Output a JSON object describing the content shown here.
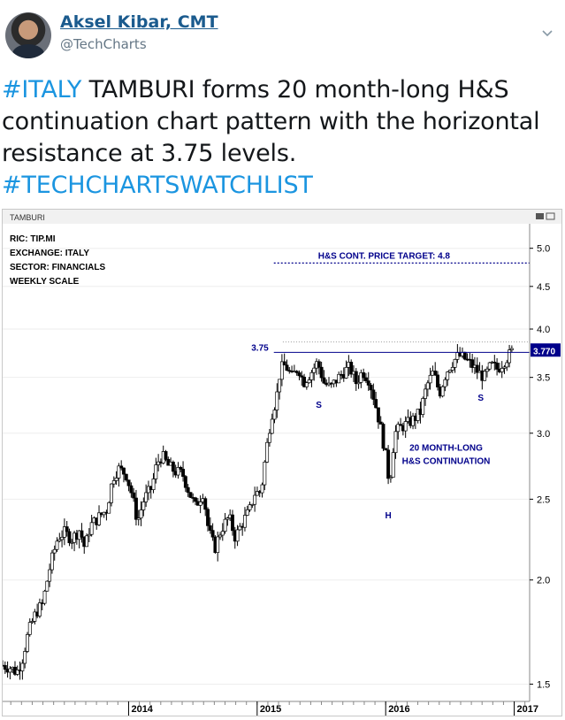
{
  "tweet": {
    "author_name": "Aksel Kibar, CMT",
    "author_handle": "@TechCharts",
    "text_tag1": "#ITALY",
    "text_body": " TAMBURI forms 20 month-long H&S continuation chart pattern with the horizontal resistance at 3.75 levels.",
    "text_tag2": "#TECHCHARTSWATCHLIST",
    "icons": {
      "avatar": "avatar-photo",
      "menu": "chevron-down-icon"
    }
  },
  "chart_data": {
    "type": "candlestick",
    "title": "TAMBURI",
    "info_lines": [
      "RIC: TIP.MI",
      "EXCHANGE: ITALY",
      "SECTOR: FINANCIALS",
      "WEEKLY SCALE"
    ],
    "scale": "log",
    "ylim": [
      1.43,
      5.35
    ],
    "y_ticks": [
      1.5,
      2.0,
      2.5,
      3.0,
      3.5,
      4.0,
      4.5,
      5.0
    ],
    "y_tick_labels": [
      "1.5",
      "2.0",
      "2.5",
      "3.0",
      "3.5",
      "4.0",
      "4.5",
      "5.0"
    ],
    "xlim": [
      2013.02,
      2017.12
    ],
    "x_ticks": [
      2014,
      2015,
      2016,
      2017
    ],
    "x_tick_labels": [
      "2014",
      "2015",
      "2016",
      "2017"
    ],
    "last_price_label": "3.770",
    "last_price": 3.77,
    "resistance": {
      "value": 3.75,
      "label": "3.75",
      "color": "#00008b"
    },
    "target": {
      "value": 4.8,
      "label": "H&S CONT. PRICE TARGET: 4.8",
      "color": "#00008b",
      "x_start": 2015.13
    },
    "dotted_reference": 3.86,
    "annotations": [
      {
        "text": "S",
        "x": 2015.48,
        "y": 3.22
      },
      {
        "text": "H",
        "x": 2016.02,
        "y": 2.37
      },
      {
        "text": "S",
        "x": 2016.74,
        "y": 3.28
      }
    ],
    "pattern_label": [
      "20 MONTH-LONG",
      "H&S CONTINUATION"
    ],
    "pattern_label_anchor": {
      "x": 2016.47,
      "y": 2.86
    },
    "price_path": [
      [
        2013.02,
        1.58
      ],
      [
        2013.08,
        1.57
      ],
      [
        2013.13,
        1.55
      ],
      [
        2013.17,
        1.6
      ],
      [
        2013.22,
        1.73
      ],
      [
        2013.28,
        1.83
      ],
      [
        2013.33,
        1.87
      ],
      [
        2013.39,
        2.08
      ],
      [
        2013.45,
        2.25
      ],
      [
        2013.5,
        2.28
      ],
      [
        2013.56,
        2.24
      ],
      [
        2013.62,
        2.3
      ],
      [
        2013.66,
        2.18
      ],
      [
        2013.7,
        2.32
      ],
      [
        2013.77,
        2.38
      ],
      [
        2013.83,
        2.43
      ],
      [
        2013.88,
        2.66
      ],
      [
        2013.92,
        2.72
      ],
      [
        2013.98,
        2.68
      ],
      [
        2014.02,
        2.55
      ],
      [
        2014.07,
        2.35
      ],
      [
        2014.12,
        2.5
      ],
      [
        2014.18,
        2.58
      ],
      [
        2014.22,
        2.76
      ],
      [
        2014.26,
        2.82
      ],
      [
        2014.31,
        2.74
      ],
      [
        2014.36,
        2.7
      ],
      [
        2014.42,
        2.68
      ],
      [
        2014.47,
        2.55
      ],
      [
        2014.52,
        2.45
      ],
      [
        2014.58,
        2.55
      ],
      [
        2014.62,
        2.3
      ],
      [
        2014.67,
        2.18
      ],
      [
        2014.72,
        2.3
      ],
      [
        2014.78,
        2.38
      ],
      [
        2014.83,
        2.25
      ],
      [
        2014.89,
        2.35
      ],
      [
        2014.94,
        2.42
      ],
      [
        2014.98,
        2.54
      ],
      [
        2015.03,
        2.55
      ],
      [
        2015.07,
        2.85
      ],
      [
        2015.11,
        3.15
      ],
      [
        2015.15,
        3.3
      ],
      [
        2015.18,
        3.58
      ],
      [
        2015.22,
        3.62
      ],
      [
        2015.27,
        3.5
      ],
      [
        2015.32,
        3.6
      ],
      [
        2015.36,
        3.45
      ],
      [
        2015.42,
        3.55
      ],
      [
        2015.47,
        3.65
      ],
      [
        2015.52,
        3.45
      ],
      [
        2015.57,
        3.4
      ],
      [
        2015.62,
        3.48
      ],
      [
        2015.67,
        3.55
      ],
      [
        2015.72,
        3.6
      ],
      [
        2015.77,
        3.45
      ],
      [
        2015.82,
        3.56
      ],
      [
        2015.87,
        3.48
      ],
      [
        2015.91,
        3.3
      ],
      [
        2015.96,
        3.05
      ],
      [
        2016.0,
        2.82
      ],
      [
        2016.03,
        2.6
      ],
      [
        2016.07,
        3.0
      ],
      [
        2016.12,
        3.05
      ],
      [
        2016.17,
        3.08
      ],
      [
        2016.22,
        3.12
      ],
      [
        2016.27,
        3.18
      ],
      [
        2016.32,
        3.42
      ],
      [
        2016.37,
        3.55
      ],
      [
        2016.42,
        3.35
      ],
      [
        2016.47,
        3.55
      ],
      [
        2016.52,
        3.65
      ],
      [
        2016.57,
        3.72
      ],
      [
        2016.62,
        3.68
      ],
      [
        2016.67,
        3.62
      ],
      [
        2016.72,
        3.55
      ],
      [
        2016.77,
        3.5
      ],
      [
        2016.82,
        3.62
      ],
      [
        2016.87,
        3.58
      ],
      [
        2016.92,
        3.66
      ],
      [
        2016.96,
        3.72
      ],
      [
        2016.99,
        3.77
      ]
    ],
    "colors": {
      "up": "#ffffff",
      "down": "#000000",
      "wick": "#000000",
      "grid": "#eeeeee"
    }
  }
}
